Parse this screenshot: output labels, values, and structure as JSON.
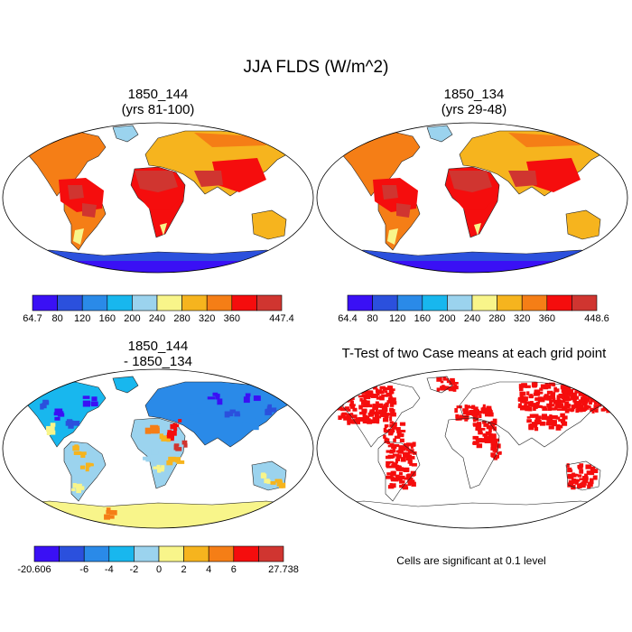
{
  "main_title": "JJA FLDS (W/m^2)",
  "panels": [
    {
      "title_line1": "1850_144",
      "title_line2": "(yrs 81-100)"
    },
    {
      "title_line1": "1850_134",
      "title_line2": "(yrs 29-48)"
    },
    {
      "title_line1": "1850_144",
      "title_line2": "- 1850_134"
    },
    {
      "title_line1": "T-Test of two Case means at each grid point",
      "title_line2": ""
    }
  ],
  "colorbars": [
    {
      "name": "case1-colorbar",
      "colors": [
        "#3a10f5",
        "#2b50dd",
        "#2a8ae8",
        "#18b7ee",
        "#9bd3ee",
        "#f8f58a",
        "#f6b41e",
        "#f57e16",
        "#f50d0d",
        "#d03530"
      ],
      "labels": [
        "64.7",
        "80",
        "120",
        "160",
        "200",
        "240",
        "280",
        "320",
        "360",
        "",
        "447.4"
      ]
    },
    {
      "name": "case2-colorbar",
      "colors": [
        "#3a10f5",
        "#2b50dd",
        "#2a8ae8",
        "#18b7ee",
        "#9bd3ee",
        "#f8f58a",
        "#f6b41e",
        "#f57e16",
        "#f50d0d",
        "#d03530"
      ],
      "labels": [
        "64.4",
        "80",
        "120",
        "160",
        "200",
        "240",
        "280",
        "320",
        "360",
        "",
        "448.6"
      ]
    },
    {
      "name": "difference-colorbar",
      "colors": [
        "#3a10f5",
        "#2b50dd",
        "#2a8ae8",
        "#18b7ee",
        "#9bd3ee",
        "#f8f58a",
        "#f6b41e",
        "#f57e16",
        "#f50d0d",
        "#d03530"
      ],
      "labels": [
        "-20.606",
        "",
        "-6",
        "-4",
        "-2",
        "0",
        "2",
        "4",
        "6",
        "",
        "27.738"
      ]
    }
  ],
  "ttest_note": "Cells are significant at 0.1 level"
}
